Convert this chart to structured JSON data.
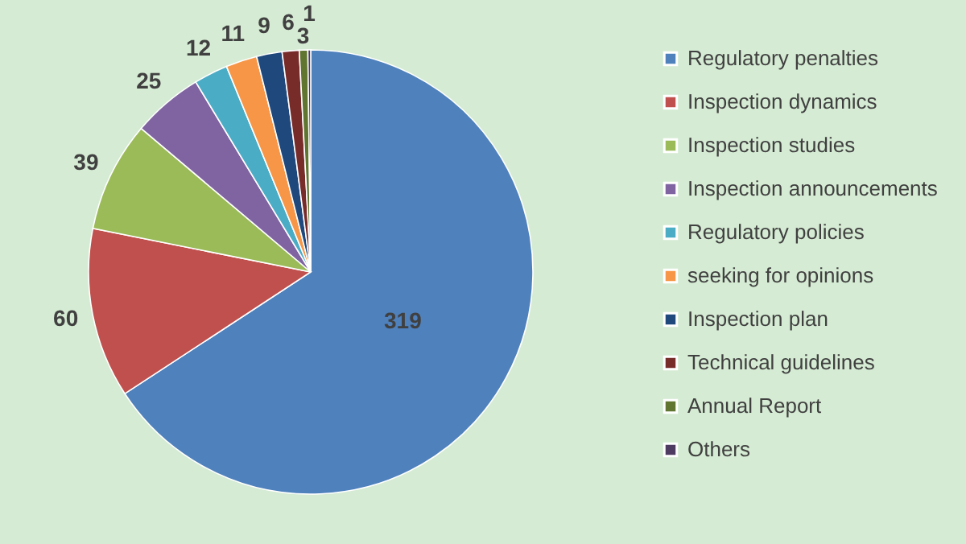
{
  "chart_data": {
    "type": "pie",
    "categories": [
      "Regulatory penalties",
      "Inspection dynamics",
      "Inspection studies",
      "Inspection announcements",
      "Regulatory policies",
      "seeking for opinions",
      "Inspection plan",
      "Technical guidelines",
      "Annual Report",
      "Others"
    ],
    "values": [
      319,
      60,
      39,
      25,
      12,
      11,
      9,
      6,
      3,
      1
    ],
    "colors": [
      "#4f81bd",
      "#c0504d",
      "#9bbb59",
      "#8064a2",
      "#4bacc6",
      "#f79646",
      "#1f497d",
      "#772c2a",
      "#5f7530",
      "#4d3b62"
    ],
    "data_labels": true,
    "legend": "right"
  }
}
